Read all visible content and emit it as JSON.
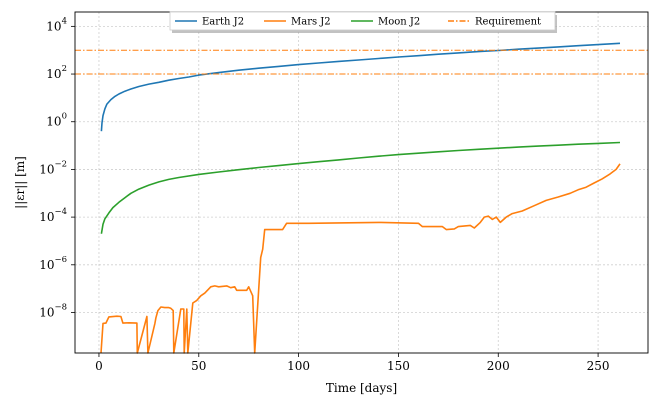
{
  "chart_data": {
    "type": "line",
    "xlabel": "Time [days]",
    "ylabel": "||εr|| [m]",
    "xlim": [
      -12,
      275
    ],
    "ylim": [
      2e-10,
      40000
    ],
    "yscale": "log",
    "grid": true,
    "legend_position": "top-center",
    "xticks": [
      0,
      50,
      100,
      150,
      200,
      250
    ],
    "yticks": [
      {
        "base": "10",
        "exp": "-8",
        "value": 1e-08
      },
      {
        "base": "10",
        "exp": "-6",
        "value": 1e-06
      },
      {
        "base": "10",
        "exp": "-4",
        "value": 0.0001
      },
      {
        "base": "10",
        "exp": "-2",
        "value": 0.01
      },
      {
        "base": "10",
        "exp": "0",
        "value": 1
      },
      {
        "base": "10",
        "exp": "2",
        "value": 100
      },
      {
        "base": "10",
        "exp": "4",
        "value": 10000
      }
    ],
    "series": [
      {
        "name": "Earth J2",
        "color": "#1f77b4",
        "style": "solid",
        "points": [
          [
            1.2,
            0.4
          ],
          [
            1.5,
            0.9
          ],
          [
            2,
            1.8
          ],
          [
            3,
            3.5
          ],
          [
            4,
            5.5
          ],
          [
            6,
            8.5
          ],
          [
            8,
            11.5
          ],
          [
            10,
            14.5
          ],
          [
            13,
            19
          ],
          [
            16,
            23.5
          ],
          [
            20,
            30
          ],
          [
            25,
            38
          ],
          [
            30,
            45
          ],
          [
            35,
            55
          ],
          [
            40,
            65
          ],
          [
            45,
            75
          ],
          [
            50,
            90
          ],
          [
            60,
            115
          ],
          [
            70,
            145
          ],
          [
            80,
            175
          ],
          [
            90,
            210
          ],
          [
            100,
            250
          ],
          [
            110,
            290
          ],
          [
            120,
            340
          ],
          [
            130,
            390
          ],
          [
            140,
            450
          ],
          [
            150,
            520
          ],
          [
            160,
            590
          ],
          [
            170,
            680
          ],
          [
            180,
            770
          ],
          [
            190,
            870
          ],
          [
            200,
            970
          ],
          [
            210,
            1100
          ],
          [
            220,
            1220
          ],
          [
            230,
            1380
          ],
          [
            240,
            1540
          ],
          [
            250,
            1720
          ],
          [
            261,
            1950
          ]
        ]
      },
      {
        "name": "Mars J2",
        "color": "#ff7f0e",
        "style": "solid",
        "points": [
          [
            1,
            1e-10
          ],
          [
            2,
            3.5e-09
          ],
          [
            3.5,
            3.6e-09
          ],
          [
            5,
            6.5e-09
          ],
          [
            9,
            7e-09
          ],
          [
            11,
            6.8e-09
          ],
          [
            12,
            3.6e-09
          ],
          [
            15,
            3.7e-09
          ],
          [
            19,
            3.6e-09
          ],
          [
            19.2,
            1e-10
          ],
          [
            24,
            6.8e-09
          ],
          [
            24.5,
            1e-10
          ],
          [
            28,
            3.5e-09
          ],
          [
            28.5,
            6e-09
          ],
          [
            29.5,
            1.2e-08
          ],
          [
            31,
            1.7e-08
          ],
          [
            33,
            1.6e-08
          ],
          [
            35,
            1.6e-08
          ],
          [
            36,
            1.5e-08
          ],
          [
            37.2,
            1.2e-08
          ],
          [
            37.5,
            1e-10
          ],
          [
            41,
            1.4e-08
          ],
          [
            42.5,
            1.4e-08
          ],
          [
            42.7,
            1e-10
          ],
          [
            44,
            1.4e-08
          ],
          [
            44.5,
            1e-10
          ],
          [
            47,
            2.5e-08
          ],
          [
            49,
            3.2e-08
          ],
          [
            51,
            5e-08
          ],
          [
            53,
            6.5e-08
          ],
          [
            56,
            1.2e-07
          ],
          [
            58,
            1.3e-07
          ],
          [
            60,
            1.2e-07
          ],
          [
            64,
            1.3e-07
          ],
          [
            66,
            1.1e-07
          ],
          [
            68,
            1.2e-07
          ],
          [
            69,
            8.5e-08
          ],
          [
            74,
            8.5e-08
          ],
          [
            75,
            1.2e-07
          ],
          [
            77,
            5e-08
          ],
          [
            78,
            1e-10
          ],
          [
            81,
            2e-06
          ],
          [
            82,
            4.5e-06
          ],
          [
            83,
            3e-05
          ],
          [
            92,
            3e-05
          ],
          [
            94,
            5.5e-05
          ],
          [
            105,
            5.5e-05
          ],
          [
            120,
            5.7e-05
          ],
          [
            140,
            6e-05
          ],
          [
            160,
            5.5e-05
          ],
          [
            162,
            4e-05
          ],
          [
            172,
            4e-05
          ],
          [
            174,
            3e-05
          ],
          [
            178,
            3.2e-05
          ],
          [
            180,
            4e-05
          ],
          [
            186,
            4.5e-05
          ],
          [
            188,
            3.5e-05
          ],
          [
            191,
            6e-05
          ],
          [
            193,
            0.0001
          ],
          [
            195,
            0.00011
          ],
          [
            197,
            8e-05
          ],
          [
            199,
            0.0001
          ],
          [
            201,
            6e-05
          ],
          [
            204,
            0.0001
          ],
          [
            207,
            0.00014
          ],
          [
            212,
            0.00018
          ],
          [
            218,
            0.0003
          ],
          [
            224,
            0.0005
          ],
          [
            230,
            0.0007
          ],
          [
            236,
            0.001
          ],
          [
            240,
            0.0014
          ],
          [
            244,
            0.0018
          ],
          [
            248,
            0.0027
          ],
          [
            252,
            0.004
          ],
          [
            256,
            0.0065
          ],
          [
            259,
            0.01
          ],
          [
            261,
            0.017
          ]
        ]
      },
      {
        "name": "Moon J2",
        "color": "#2ca02c",
        "style": "solid",
        "points": [
          [
            1.2,
            2e-05
          ],
          [
            2,
            5e-05
          ],
          [
            3,
            8.5e-05
          ],
          [
            5,
            0.00015
          ],
          [
            7,
            0.00025
          ],
          [
            10,
            0.00042
          ],
          [
            13,
            0.00065
          ],
          [
            16,
            0.001
          ],
          [
            20,
            0.0015
          ],
          [
            25,
            0.0022
          ],
          [
            30,
            0.003
          ],
          [
            35,
            0.0038
          ],
          [
            40,
            0.0046
          ],
          [
            50,
            0.0062
          ],
          [
            60,
            0.0078
          ],
          [
            70,
            0.0097
          ],
          [
            80,
            0.012
          ],
          [
            90,
            0.0145
          ],
          [
            100,
            0.0175
          ],
          [
            110,
            0.021
          ],
          [
            120,
            0.025
          ],
          [
            130,
            0.03
          ],
          [
            140,
            0.036
          ],
          [
            150,
            0.042
          ],
          [
            160,
            0.048
          ],
          [
            170,
            0.055
          ],
          [
            180,
            0.062
          ],
          [
            190,
            0.07
          ],
          [
            200,
            0.078
          ],
          [
            210,
            0.086
          ],
          [
            220,
            0.095
          ],
          [
            230,
            0.104
          ],
          [
            240,
            0.114
          ],
          [
            250,
            0.124
          ],
          [
            261,
            0.135
          ]
        ]
      },
      {
        "name": "Requirement",
        "color": "#ff7f0e",
        "style": "dashdot",
        "hlines": [
          100,
          1000
        ]
      }
    ]
  }
}
